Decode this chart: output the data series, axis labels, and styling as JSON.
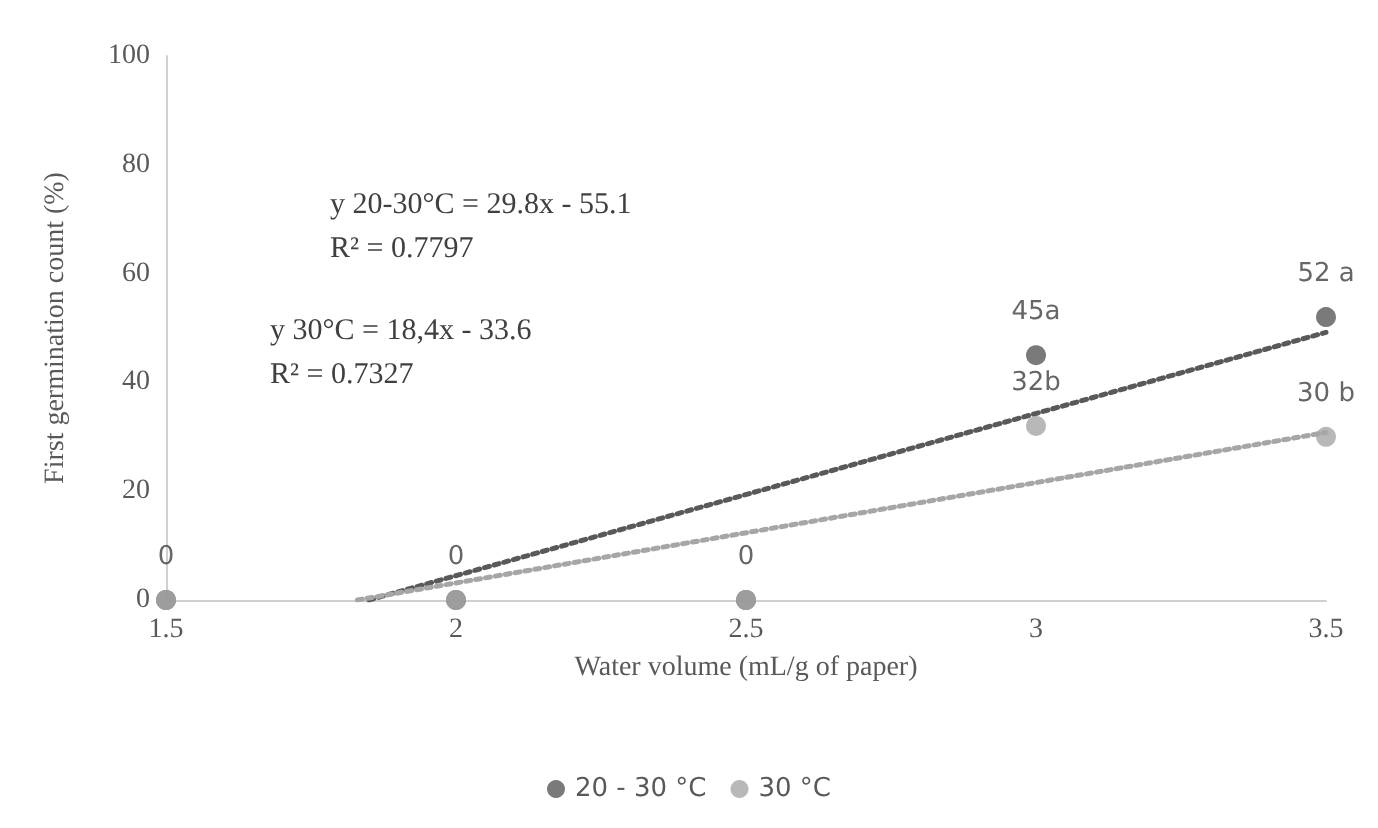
{
  "chart_data": {
    "type": "scatter",
    "xlabel": "Water volume (mL/g of paper)",
    "ylabel": "First germination count (%)",
    "x": [
      1.5,
      2,
      2.5,
      3,
      3.5
    ],
    "series": [
      {
        "name": "20 - 30 °C",
        "color": "#595959",
        "values": [
          0,
          0,
          0,
          45,
          52
        ],
        "value_labels": [
          "0",
          "0",
          "0",
          "45a",
          "52 a"
        ]
      },
      {
        "name": "30 °C",
        "color": "#a6a6a6",
        "values": [
          0,
          0,
          0,
          32,
          30
        ],
        "value_labels": [
          null,
          null,
          null,
          "32b",
          "30 b"
        ]
      },
      {
        "type": "line",
        "color": "#595959",
        "x": [
          1.85,
          3.5
        ],
        "values": [
          0,
          49.2
        ],
        "line_style": "dotted",
        "marker": "none"
      },
      {
        "type": "line",
        "color": "#a6a6a6",
        "x": [
          1.83,
          3.5
        ],
        "values": [
          0,
          30.8
        ],
        "line_style": "dotted",
        "marker": "none"
      }
    ],
    "annotations": [
      "y 20-30°C = 29.8x - 55.1",
      "R² = 0.7797",
      "y 30°C = 18,4x - 33.6",
      "R² = 0.7327"
    ],
    "xlim": [
      1.5,
      3.5
    ],
    "xticks": [
      1.5,
      2,
      2.5,
      3,
      3.5
    ],
    "ylim": [
      0,
      100
    ],
    "yticks": [
      0,
      20,
      40,
      60,
      80,
      100
    ],
    "grid": false,
    "legend": "bottom",
    "marker": "circle"
  }
}
